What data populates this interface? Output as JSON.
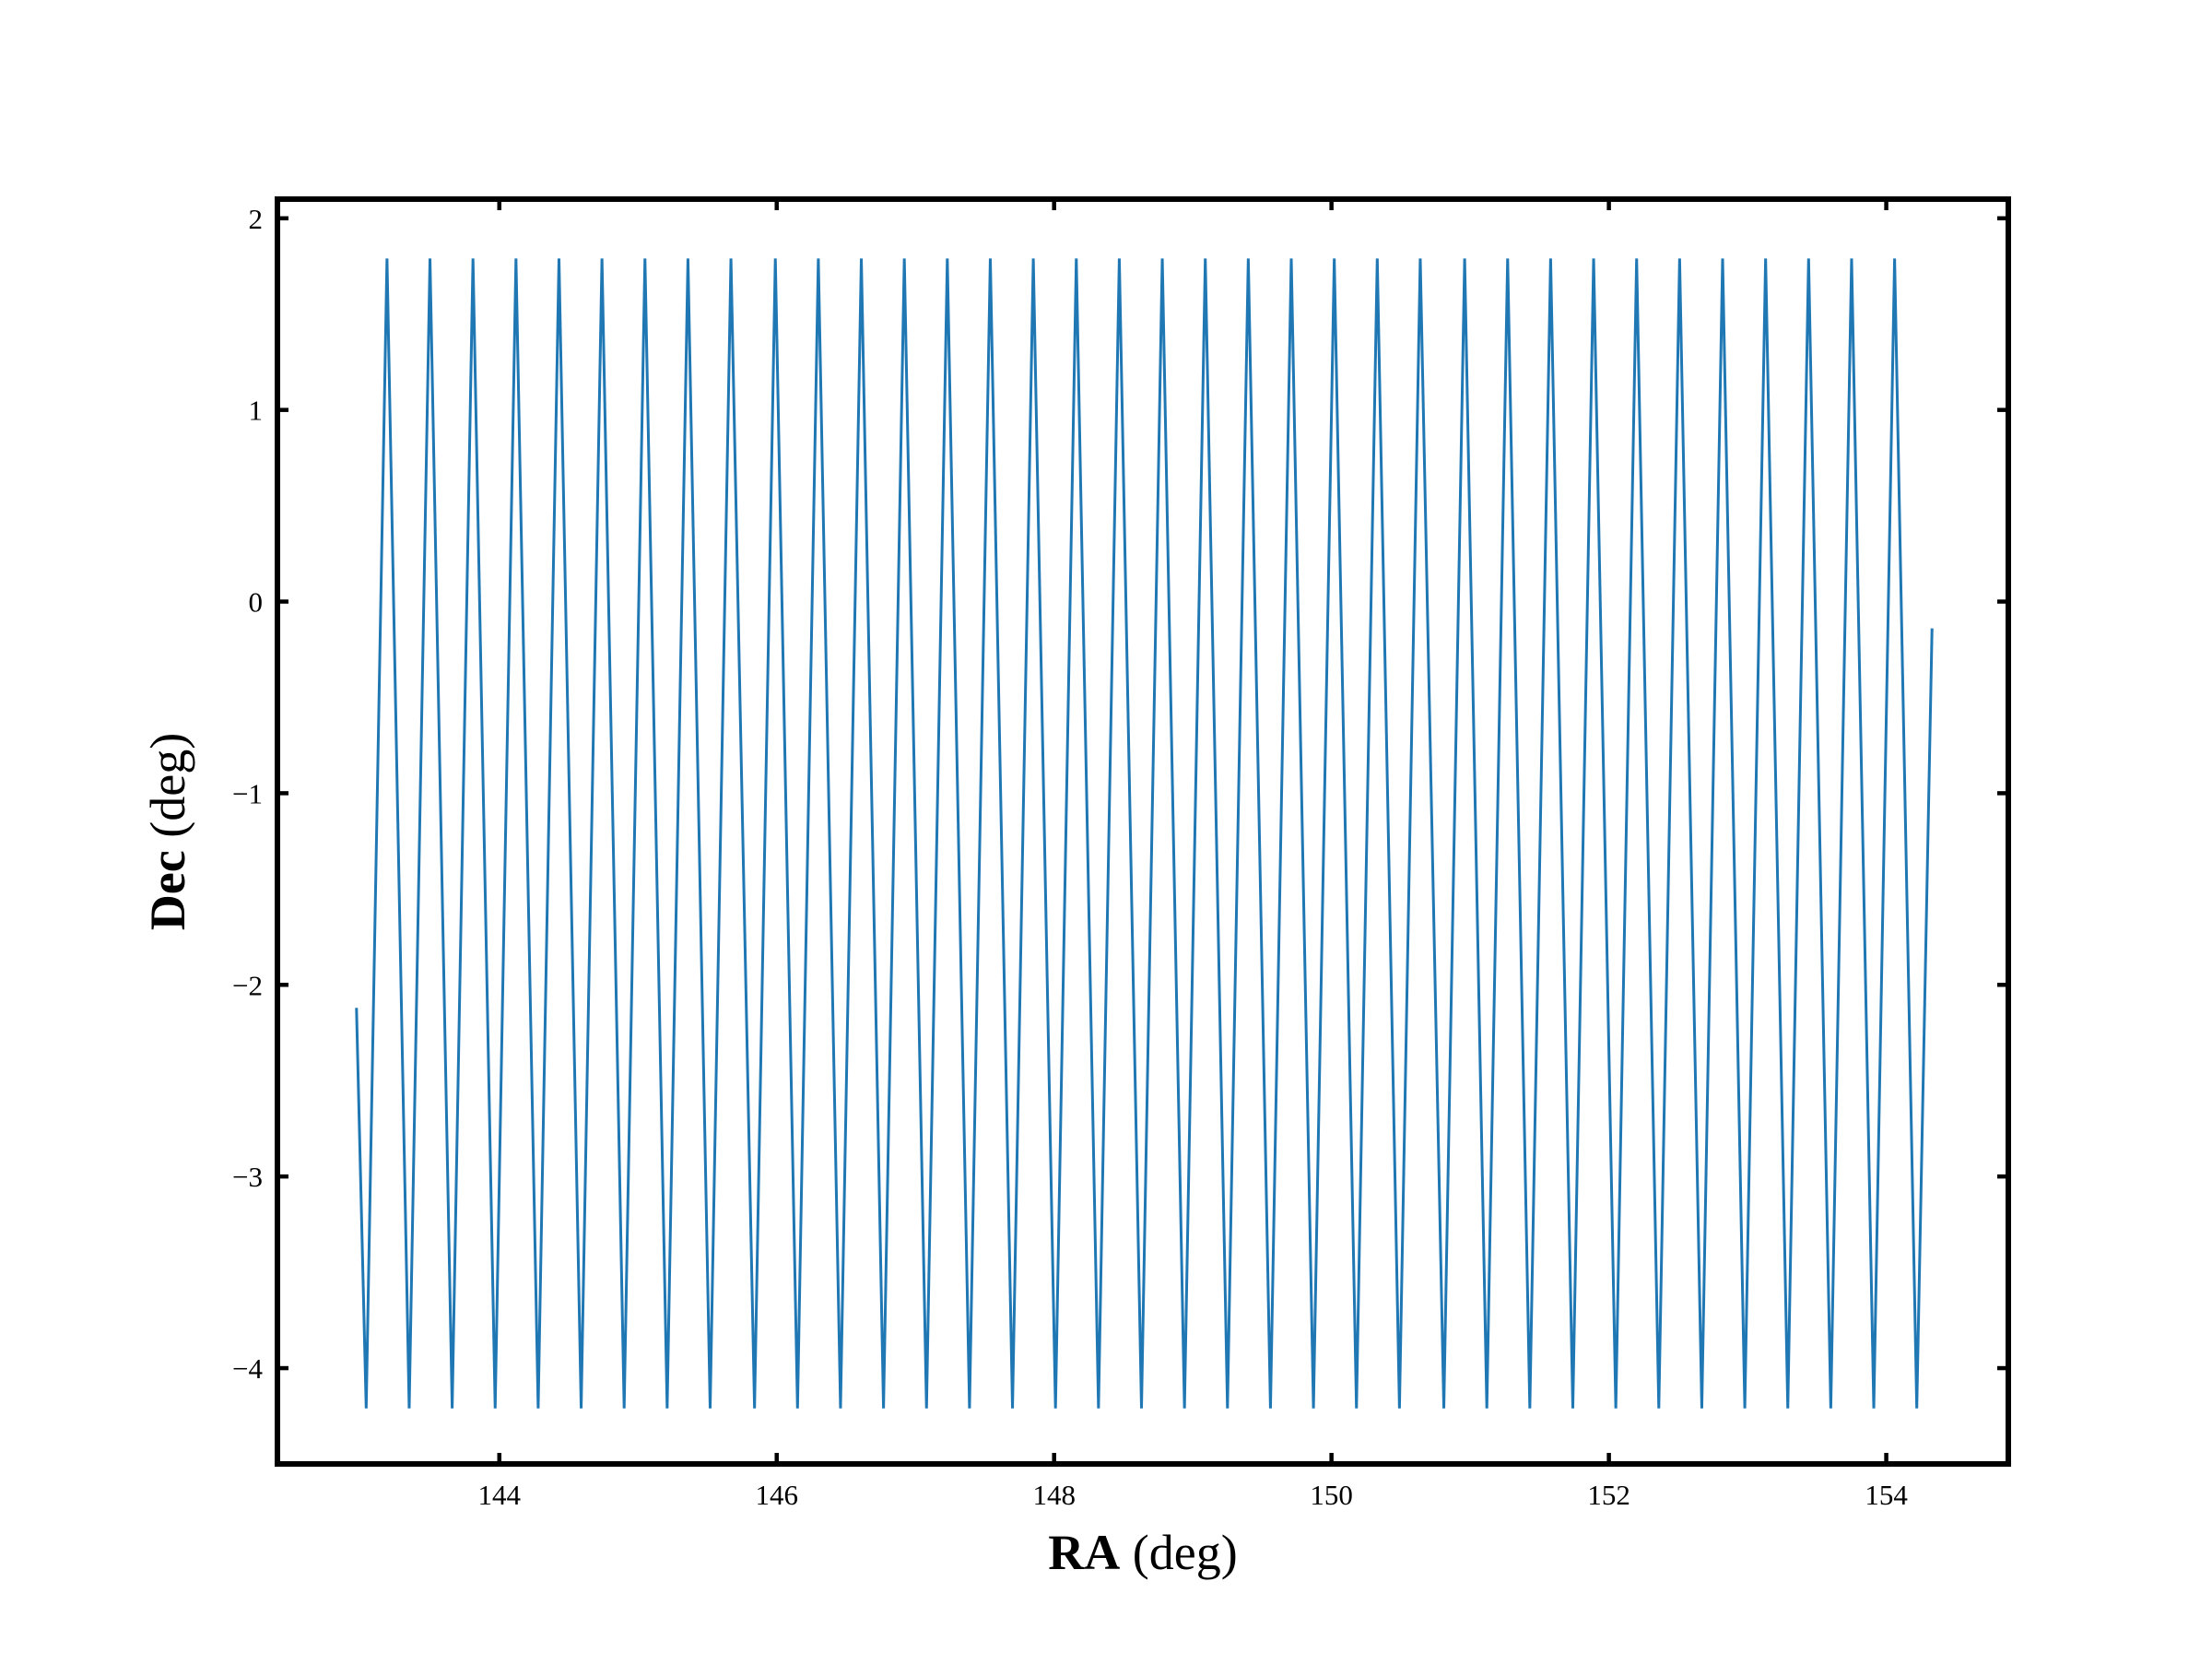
{
  "chart_data": {
    "type": "line",
    "xlabel": "RA (deg)",
    "ylabel": "Dec (deg)",
    "color": "#1f77b4",
    "xlim": [
      142.4,
      154.88
    ],
    "ylim": [
      -4.5,
      2.1
    ],
    "xticks": [
      144,
      146,
      148,
      150,
      152,
      154
    ],
    "yticks": [
      {
        "value": -4,
        "label": "−4"
      },
      {
        "value": -3,
        "label": "−3"
      },
      {
        "value": -2,
        "label": "−2"
      },
      {
        "value": -1,
        "label": "−1"
      },
      0,
      1,
      2
    ],
    "x": [
      142.97,
      143.04,
      143.19,
      143.35,
      143.5,
      143.66,
      143.81,
      143.97,
      144.12,
      144.28,
      144.43,
      144.59,
      144.74,
      144.9,
      145.05,
      145.21,
      145.36,
      145.52,
      145.67,
      145.84,
      145.99,
      146.15,
      146.3,
      146.46,
      146.61,
      146.77,
      146.92,
      147.08,
      147.23,
      147.39,
      147.54,
      147.7,
      147.85,
      148.01,
      148.16,
      148.32,
      148.47,
      148.63,
      148.78,
      148.94,
      149.09,
      149.25,
      149.4,
      149.56,
      149.71,
      149.87,
      150.02,
      150.18,
      150.33,
      150.49,
      150.64,
      150.81,
      150.96,
      151.12,
      151.27,
      151.43,
      151.58,
      151.74,
      151.89,
      152.05,
      152.2,
      152.36,
      152.51,
      152.67,
      152.82,
      152.98,
      153.13,
      153.29,
      153.44,
      153.6,
      153.75,
      153.91,
      154.06,
      154.22,
      154.33
    ],
    "values": [
      -2.12,
      -4.21,
      1.79,
      -4.21,
      1.79,
      -4.21,
      1.79,
      -4.21,
      1.79,
      -4.21,
      1.79,
      -4.21,
      1.79,
      -4.21,
      1.79,
      -4.21,
      1.79,
      -4.21,
      1.79,
      -4.21,
      1.79,
      -4.21,
      1.79,
      -4.21,
      1.79,
      -4.21,
      1.79,
      -4.21,
      1.79,
      -4.21,
      1.79,
      -4.21,
      1.79,
      -4.21,
      1.79,
      -4.21,
      1.79,
      -4.21,
      1.79,
      -4.21,
      1.79,
      -4.21,
      1.79,
      -4.21,
      1.79,
      -4.21,
      1.79,
      -4.21,
      1.79,
      -4.21,
      1.79,
      -4.21,
      1.79,
      -4.21,
      1.79,
      -4.21,
      1.79,
      -4.21,
      1.79,
      -4.21,
      1.79,
      -4.21,
      1.79,
      -4.21,
      1.79,
      -4.21,
      1.79,
      -4.21,
      1.79,
      -4.21,
      1.79,
      -4.21,
      1.79,
      -4.21,
      -0.14
    ]
  }
}
